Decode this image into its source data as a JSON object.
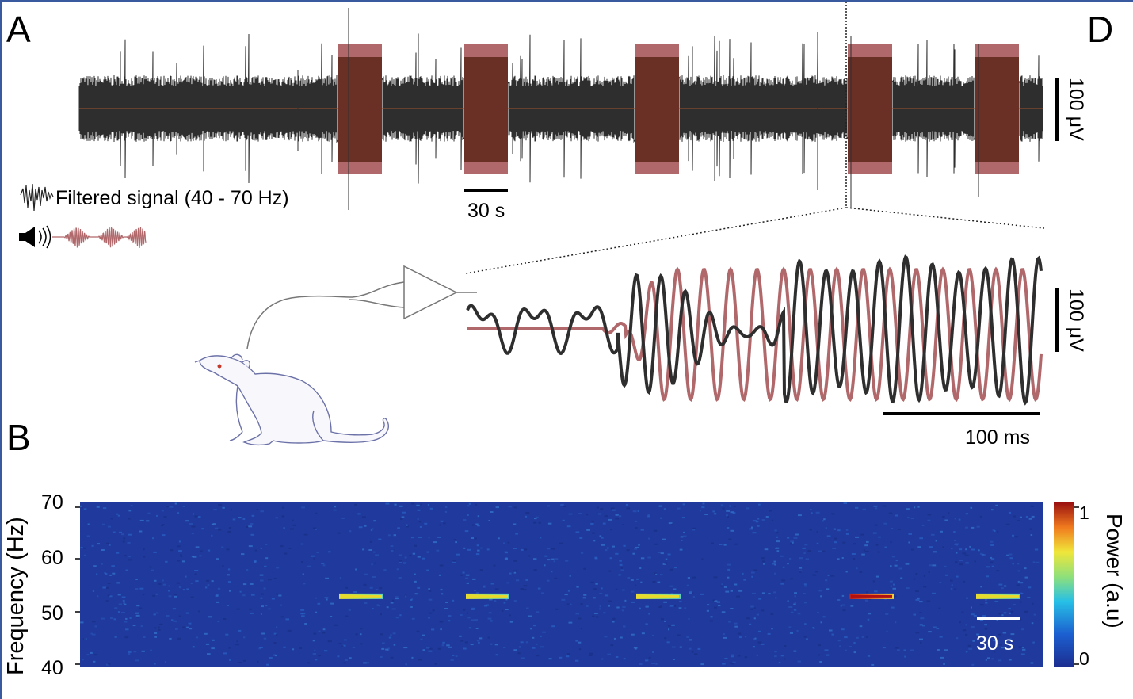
{
  "panels": {
    "a": "A",
    "b": "B",
    "d": "D"
  },
  "legend": {
    "filtered": "Filtered signal (40 - 70 Hz)"
  },
  "top_trace": {
    "scale_y": "100 μV",
    "scale_x": "30 s",
    "stim_blocks": 5
  },
  "zoom_trace": {
    "scale_y": "100 μV",
    "scale_x": "100 ms"
  },
  "spectrogram": {
    "ylabel": "Frequency (Hz)",
    "yticks": [
      "70",
      "60",
      "50",
      "40"
    ],
    "scale_x": "30 s",
    "colorbar_label": "Power (a.u)",
    "colorbar_max": "1",
    "colorbar_min": "0",
    "stim_frequency_hz": 53
  },
  "colors": {
    "signal": "#2e2e2e",
    "stim": "#b0686b",
    "stim_dark": "#6a3026",
    "spectro_bg": "#1f3a9c"
  }
}
